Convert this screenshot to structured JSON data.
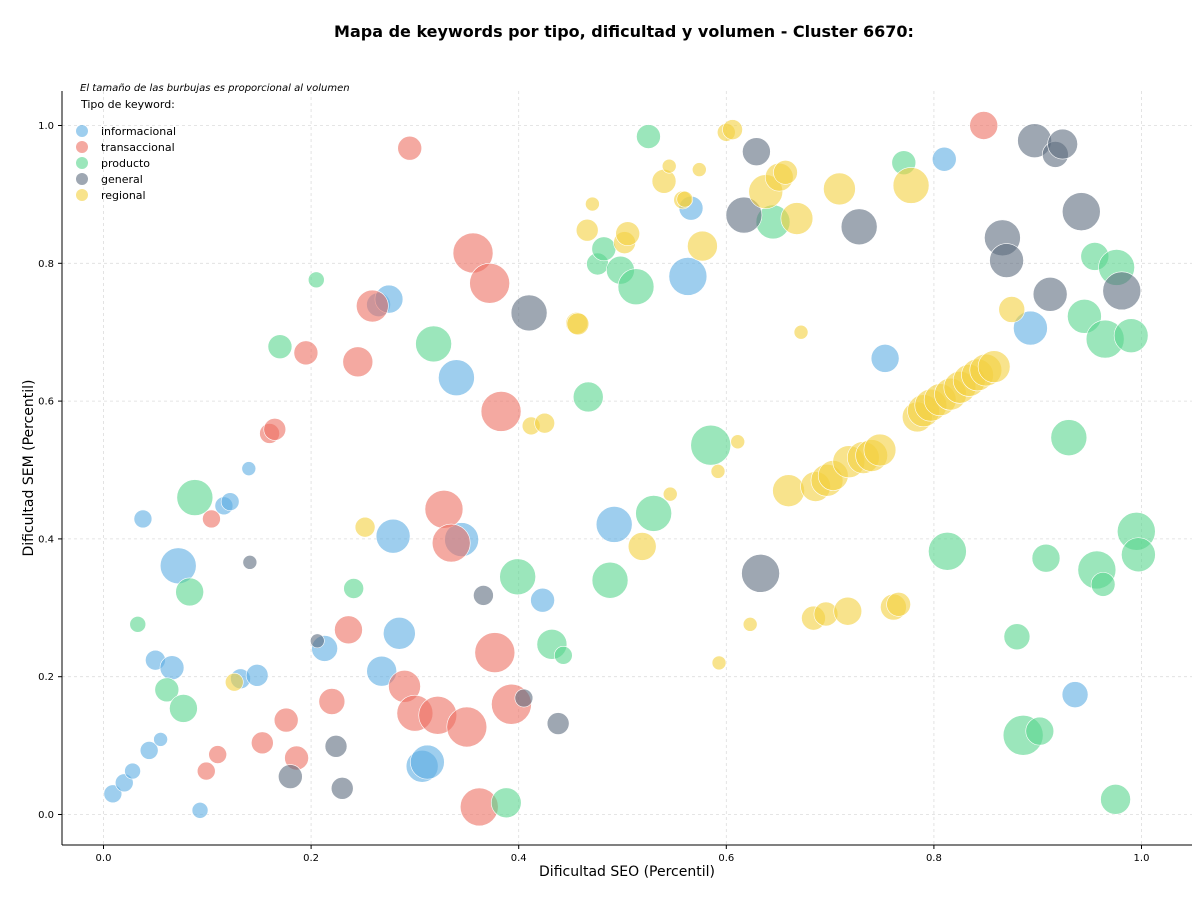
{
  "chart_data": {
    "type": "scatter",
    "title": "Mapa de keywords por tipo, dificultad y volumen - Cluster 6670:",
    "xlabel": "Dificultad SEO (Percentil)",
    "ylabel": "Dificultad SEM (Percentil)",
    "xlim": [
      -0.04,
      1.05
    ],
    "ylim": [
      -0.045,
      1.05
    ],
    "x_ticks": [
      "0.0",
      "0.2",
      "0.4",
      "0.6",
      "0.8",
      "1.0"
    ],
    "y_ticks": [
      "0.0",
      "0.2",
      "0.4",
      "0.6",
      "0.8",
      "1.0"
    ],
    "grid": true,
    "legend_placement": "top-left",
    "note": "El tamaño de las burbujas es proporcional al volumen",
    "legend_title": "Tipo de keyword:",
    "size_note": "point size radius in px (relative volume)",
    "series": [
      {
        "name": "informacional",
        "color": "#5dade2",
        "points": [
          [
            0.009,
            0.03,
            9
          ],
          [
            0.02,
            0.046,
            9
          ],
          [
            0.028,
            0.063,
            8
          ],
          [
            0.044,
            0.093,
            9
          ],
          [
            0.055,
            0.109,
            7
          ],
          [
            0.05,
            0.224,
            10
          ],
          [
            0.066,
            0.213,
            12
          ],
          [
            0.072,
            0.361,
            18
          ],
          [
            0.038,
            0.429,
            9
          ],
          [
            0.093,
            0.006,
            8
          ],
          [
            0.116,
            0.448,
            9
          ],
          [
            0.122,
            0.454,
            9
          ],
          [
            0.14,
            0.502,
            7
          ],
          [
            0.132,
            0.197,
            10
          ],
          [
            0.148,
            0.202,
            11
          ],
          [
            0.213,
            0.241,
            13
          ],
          [
            0.268,
            0.208,
            15
          ],
          [
            0.285,
            0.263,
            16
          ],
          [
            0.279,
            0.404,
            17
          ],
          [
            0.265,
            0.74,
            12
          ],
          [
            0.275,
            0.748,
            14
          ],
          [
            0.34,
            0.634,
            18
          ],
          [
            0.345,
            0.399,
            17
          ],
          [
            0.307,
            0.07,
            16
          ],
          [
            0.312,
            0.076,
            17
          ],
          [
            0.423,
            0.311,
            12
          ],
          [
            0.492,
            0.421,
            18
          ],
          [
            0.566,
            0.88,
            12
          ],
          [
            0.563,
            0.781,
            19
          ],
          [
            0.753,
            0.662,
            14
          ],
          [
            0.81,
            0.951,
            12
          ],
          [
            0.893,
            0.706,
            17
          ],
          [
            0.936,
            0.174,
            13
          ]
        ]
      },
      {
        "name": "transaccional",
        "color": "#ec7063",
        "points": [
          [
            0.104,
            0.429,
            9
          ],
          [
            0.11,
            0.087,
            9
          ],
          [
            0.099,
            0.063,
            9
          ],
          [
            0.153,
            0.104,
            11
          ],
          [
            0.16,
            0.553,
            10
          ],
          [
            0.165,
            0.559,
            11
          ],
          [
            0.176,
            0.137,
            12
          ],
          [
            0.186,
            0.082,
            12
          ],
          [
            0.195,
            0.67,
            12
          ],
          [
            0.22,
            0.164,
            13
          ],
          [
            0.236,
            0.268,
            14
          ],
          [
            0.245,
            0.657,
            15
          ],
          [
            0.259,
            0.738,
            16
          ],
          [
            0.29,
            0.186,
            16
          ],
          [
            0.3,
            0.147,
            18
          ],
          [
            0.322,
            0.144,
            19
          ],
          [
            0.295,
            0.967,
            12
          ],
          [
            0.328,
            0.443,
            19
          ],
          [
            0.335,
            0.394,
            19
          ],
          [
            0.35,
            0.127,
            20
          ],
          [
            0.356,
            0.815,
            20
          ],
          [
            0.372,
            0.771,
            20
          ],
          [
            0.377,
            0.235,
            20
          ],
          [
            0.383,
            0.585,
            20
          ],
          [
            0.393,
            0.16,
            20
          ],
          [
            0.362,
            0.011,
            19
          ],
          [
            0.848,
            1.0,
            14
          ]
        ]
      },
      {
        "name": "producto",
        "color": "#58d68d",
        "points": [
          [
            0.033,
            0.276,
            8
          ],
          [
            0.061,
            0.181,
            12
          ],
          [
            0.077,
            0.154,
            14
          ],
          [
            0.083,
            0.323,
            14
          ],
          [
            0.088,
            0.46,
            18
          ],
          [
            0.17,
            0.679,
            12
          ],
          [
            0.205,
            0.776,
            8
          ],
          [
            0.241,
            0.328,
            10
          ],
          [
            0.318,
            0.683,
            18
          ],
          [
            0.388,
            0.017,
            15
          ],
          [
            0.399,
            0.345,
            18
          ],
          [
            0.432,
            0.247,
            15
          ],
          [
            0.443,
            0.231,
            9
          ],
          [
            0.467,
            0.606,
            15
          ],
          [
            0.476,
            0.799,
            11
          ],
          [
            0.482,
            0.821,
            12
          ],
          [
            0.488,
            0.34,
            18
          ],
          [
            0.498,
            0.79,
            14
          ],
          [
            0.513,
            0.766,
            18
          ],
          [
            0.525,
            0.984,
            12
          ],
          [
            0.53,
            0.437,
            18
          ],
          [
            0.585,
            0.536,
            20
          ],
          [
            0.645,
            0.86,
            17
          ],
          [
            0.771,
            0.946,
            12
          ],
          [
            0.813,
            0.382,
            19
          ],
          [
            0.88,
            0.258,
            13
          ],
          [
            0.886,
            0.115,
            20
          ],
          [
            0.902,
            0.121,
            14
          ],
          [
            0.908,
            0.372,
            14
          ],
          [
            0.93,
            0.547,
            18
          ],
          [
            0.945,
            0.723,
            17
          ],
          [
            0.955,
            0.81,
            14
          ],
          [
            0.957,
            0.355,
            19
          ],
          [
            0.963,
            0.334,
            12
          ],
          [
            0.965,
            0.69,
            19
          ],
          [
            0.975,
            0.022,
            15
          ],
          [
            0.976,
            0.794,
            18
          ],
          [
            0.99,
            0.695,
            17
          ],
          [
            0.995,
            0.411,
            19
          ],
          [
            0.997,
            0.377,
            17
          ]
        ]
      },
      {
        "name": "general",
        "color": "#5d6d7e",
        "points": [
          [
            0.141,
            0.366,
            7
          ],
          [
            0.18,
            0.055,
            12
          ],
          [
            0.206,
            0.252,
            7
          ],
          [
            0.224,
            0.099,
            11
          ],
          [
            0.23,
            0.038,
            11
          ],
          [
            0.366,
            0.318,
            10
          ],
          [
            0.405,
            0.169,
            9
          ],
          [
            0.41,
            0.728,
            18
          ],
          [
            0.438,
            0.132,
            11
          ],
          [
            0.629,
            0.962,
            14
          ],
          [
            0.617,
            0.87,
            18
          ],
          [
            0.633,
            0.35,
            19
          ],
          [
            0.728,
            0.853,
            18
          ],
          [
            0.866,
            0.837,
            18
          ],
          [
            0.87,
            0.804,
            17
          ],
          [
            0.897,
            0.978,
            17
          ],
          [
            0.912,
            0.755,
            17
          ],
          [
            0.917,
            0.958,
            13
          ],
          [
            0.924,
            0.973,
            15
          ],
          [
            0.942,
            0.875,
            19
          ],
          [
            0.981,
            0.76,
            19
          ]
        ]
      },
      {
        "name": "regional",
        "color": "#f4d03f",
        "points": [
          [
            0.126,
            0.192,
            9
          ],
          [
            0.252,
            0.417,
            10
          ],
          [
            0.412,
            0.564,
            9
          ],
          [
            0.425,
            0.568,
            10
          ],
          [
            0.456,
            0.713,
            11
          ],
          [
            0.457,
            0.712,
            11
          ],
          [
            0.466,
            0.848,
            11
          ],
          [
            0.471,
            0.886,
            7
          ],
          [
            0.502,
            0.83,
            11
          ],
          [
            0.505,
            0.843,
            12
          ],
          [
            0.519,
            0.389,
            14
          ],
          [
            0.54,
            0.919,
            12
          ],
          [
            0.545,
            0.941,
            7
          ],
          [
            0.546,
            0.465,
            7
          ],
          [
            0.558,
            0.892,
            9
          ],
          [
            0.56,
            0.893,
            8
          ],
          [
            0.574,
            0.936,
            7
          ],
          [
            0.577,
            0.825,
            15
          ],
          [
            0.592,
            0.498,
            7
          ],
          [
            0.593,
            0.22,
            7
          ],
          [
            0.6,
            0.99,
            9
          ],
          [
            0.606,
            0.994,
            10
          ],
          [
            0.611,
            0.541,
            7
          ],
          [
            0.623,
            0.276,
            7
          ],
          [
            0.638,
            0.904,
            17
          ],
          [
            0.651,
            0.925,
            14
          ],
          [
            0.657,
            0.932,
            12
          ],
          [
            0.66,
            0.47,
            16
          ],
          [
            0.668,
            0.865,
            16
          ],
          [
            0.672,
            0.7,
            7
          ],
          [
            0.684,
            0.285,
            12
          ],
          [
            0.686,
            0.476,
            15
          ],
          [
            0.696,
            0.291,
            12
          ],
          [
            0.697,
            0.485,
            16
          ],
          [
            0.703,
            0.492,
            15
          ],
          [
            0.709,
            0.908,
            16
          ],
          [
            0.717,
            0.295,
            14
          ],
          [
            0.718,
            0.512,
            16
          ],
          [
            0.732,
            0.518,
            16
          ],
          [
            0.74,
            0.521,
            16
          ],
          [
            0.748,
            0.529,
            16
          ],
          [
            0.761,
            0.301,
            13
          ],
          [
            0.766,
            0.305,
            12
          ],
          [
            0.778,
            0.913,
            18
          ],
          [
            0.784,
            0.577,
            15
          ],
          [
            0.79,
            0.586,
            16
          ],
          [
            0.797,
            0.594,
            16
          ],
          [
            0.806,
            0.602,
            16
          ],
          [
            0.816,
            0.61,
            16
          ],
          [
            0.825,
            0.62,
            16
          ],
          [
            0.834,
            0.63,
            16
          ],
          [
            0.842,
            0.638,
            16
          ],
          [
            0.85,
            0.645,
            16
          ],
          [
            0.858,
            0.65,
            16
          ],
          [
            0.875,
            0.733,
            13
          ]
        ]
      }
    ]
  }
}
